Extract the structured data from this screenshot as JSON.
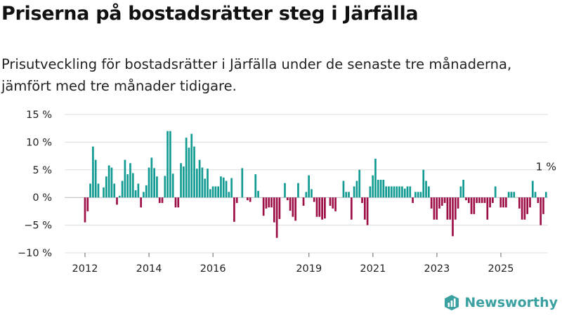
{
  "title": "Priserna på bostadsrätter steg i Järfälla",
  "subtitle": "Prisutveckling för bostadsrätter i Järfälla under de senaste tre månaderna, jämfört med tre månader tidigare.",
  "brand": {
    "name": "Newsworthy",
    "icon": "newsworthy-logo-icon"
  },
  "chart_data": {
    "type": "bar",
    "unit": "%",
    "ylim": [
      -10,
      15
    ],
    "yticks": [
      15,
      10,
      5,
      0,
      -5,
      -10
    ],
    "ytick_labels": [
      "15 %",
      "10 %",
      "5 %",
      "0 %",
      "−5 %",
      "−10 %"
    ],
    "xticks": [
      2012,
      2014,
      2016,
      2019,
      2021,
      2023,
      2025
    ],
    "grid": true,
    "colors": {
      "positive": "#129b93",
      "negative": "#9e0f47",
      "grid": "#dddddd",
      "zero": "#bbbbbb"
    },
    "annotation": {
      "text": "1 %",
      "at": "last bar"
    },
    "x_start": 2012.0,
    "x_step": 0.0833,
    "values": [
      -4.5,
      -2.5,
      2.5,
      9.2,
      6.8,
      2.5,
      0,
      1.8,
      3.8,
      5.8,
      5.4,
      2.5,
      -1.3,
      0.3,
      3,
      6.8,
      4.2,
      6.2,
      4.4,
      1.3,
      2.5,
      -1.8,
      1,
      2.2,
      5.4,
      7.2,
      5.3,
      3.8,
      -1,
      -1,
      3.9,
      12,
      12,
      4.3,
      -1.8,
      -1.8,
      6.2,
      5.6,
      10.8,
      9,
      11.5,
      9.2,
      5.2,
      6.8,
      5.4,
      3.4,
      5.2,
      1.5,
      2,
      2,
      2,
      3.8,
      3.6,
      3,
      1,
      3.5,
      -4.4,
      -1,
      0,
      5.3,
      0,
      -0.5,
      -0.8,
      0,
      4.2,
      1.2,
      0,
      -3.3,
      -2,
      -1.8,
      -1.8,
      -4.5,
      -7.3,
      -3.9,
      0,
      2.6,
      -0.5,
      -2.4,
      -3.5,
      -4.2,
      2.6,
      0,
      -1.5,
      1,
      4,
      1.5,
      -0.8,
      -3.5,
      -3.5,
      -4,
      -3.8,
      0,
      -1.5,
      -2,
      -2.5,
      0,
      0,
      3,
      1,
      1,
      -4,
      2,
      3,
      5,
      -1,
      -4,
      -5,
      2,
      4,
      7,
      3.2,
      3.2,
      3.2,
      2,
      2,
      2,
      2,
      2,
      2,
      2,
      1.6,
      2,
      2,
      -1,
      1,
      1,
      1,
      5,
      3,
      2,
      -2,
      -4,
      -4,
      -2,
      -1.5,
      -1,
      -4,
      -4,
      -7,
      -4,
      -2,
      2,
      3.2,
      -0.5,
      -1,
      -3,
      -3,
      -1,
      -1,
      -1,
      -1,
      -4,
      -1.8,
      -1,
      2,
      0,
      -1.8,
      -1.8,
      -1.8,
      1,
      1,
      1,
      0,
      -2,
      -4,
      -4,
      -3,
      -1.8,
      3,
      1,
      -1,
      -5,
      -3,
      1
    ]
  }
}
